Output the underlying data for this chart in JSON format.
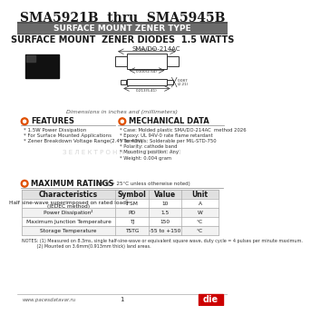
{
  "title": "SMA5921B  thru  SMA5945B",
  "subtitle_band": "SURFACE MOUNT ZENER TYPE",
  "subtitle2": "SURFACE MOUNT  ZENER DIODES  1.5 WATTS",
  "package": "SMA/DO-214AC",
  "dim_note": "Dimensions in inches and (millimeters)",
  "features_title": "FEATURES",
  "features": [
    "* 1.5W Power Dissipation",
    "* For Surface Mounted Applications",
    "* Zener Breakdown Voltage Range(2.4V to 43V)"
  ],
  "mech_title": "MECHANICAL DATA",
  "mech": [
    "* Case: Molded plastic SMA/DO-214AC  method 2026",
    "* Epoxy: UL 94V-0 rate flame retardant",
    "* Terminals: Solderable per MIL-STD-750",
    "* Polarity: cathode band",
    "* Mounting position: Any",
    "* Weight: 0.004 gram"
  ],
  "max_ratings_title": "MAXIMUM RATINGS",
  "max_ratings_note": "(at TJ = 25°C unless otherwise noted)",
  "table_headers": [
    "Characteristics",
    "Symbol",
    "Value",
    "Unit"
  ],
  "table_rows": [
    [
      "Half sine-wave superimposed on rated load¹\n(JEDEC method)",
      "IFSM",
      "10",
      "A"
    ],
    [
      "Power Dissipation²",
      "PD",
      "1.5",
      "W"
    ],
    [
      "Maximum Junction Temperature",
      "TJ",
      "150",
      "°C"
    ],
    [
      "Storage Temperature",
      "TSTG",
      "-55 to +150",
      "°C"
    ]
  ],
  "notes": [
    "NOTES: (1) Measured on 8.3ms, single half-sine-wave or equivalent square wave, duty cycle = 4 pulses per minute maximum.",
    "           (2) Mounted on 3.6mm(0.913mm thick) land areas."
  ],
  "footer_left": "www.pacesdatavar.ru",
  "footer_page": "1",
  "bg_color": "#ffffff",
  "band_color": "#6b6b6b",
  "band_text_color": "#ffffff",
  "header_bg": "#d0d0d0",
  "section_circle_color": "#e05000",
  "table_header_bg": "#e0e0e0"
}
